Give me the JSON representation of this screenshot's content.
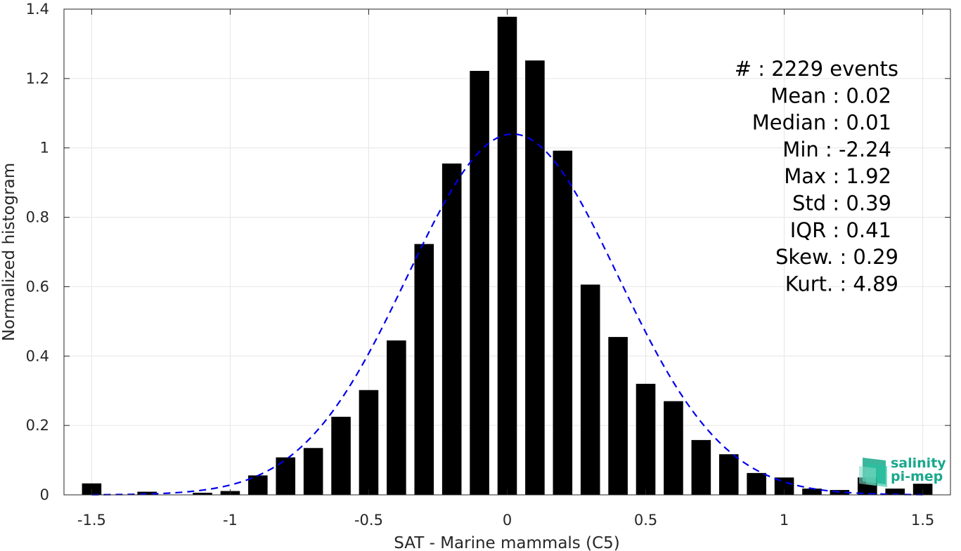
{
  "chart_data": {
    "type": "bar",
    "xlabel": "SAT - Marine mammals (C5)",
    "ylabel": "Normalized histogram",
    "xlim": [
      -1.6,
      1.6
    ],
    "ylim": [
      0,
      1.4
    ],
    "grid": true,
    "xticks": [
      -1.5,
      -1,
      -0.5,
      0,
      0.5,
      1,
      1.5
    ],
    "xtick_labels": [
      "-1.5",
      "-1",
      "-0.5",
      "0",
      "0.5",
      "1",
      "1.5"
    ],
    "yticks": [
      0,
      0.2,
      0.4,
      0.6,
      0.8,
      1,
      1.2,
      1.4
    ],
    "ytick_labels": [
      "0",
      "0.2",
      "0.4",
      "0.6",
      "0.8",
      "1",
      "1.2",
      "1.4"
    ],
    "bar_width": 0.07,
    "bins": [
      {
        "x": -1.5,
        "y": 0.033
      },
      {
        "x": -1.3,
        "y": 0.009
      },
      {
        "x": -1.1,
        "y": 0.006
      },
      {
        "x": -1.0,
        "y": 0.011
      },
      {
        "x": -0.9,
        "y": 0.056
      },
      {
        "x": -0.8,
        "y": 0.108
      },
      {
        "x": -0.7,
        "y": 0.135
      },
      {
        "x": -0.6,
        "y": 0.225
      },
      {
        "x": -0.5,
        "y": 0.302
      },
      {
        "x": -0.4,
        "y": 0.445
      },
      {
        "x": -0.3,
        "y": 0.723
      },
      {
        "x": -0.2,
        "y": 0.955
      },
      {
        "x": -0.1,
        "y": 1.222
      },
      {
        "x": 0.0,
        "y": 1.378
      },
      {
        "x": 0.1,
        "y": 1.252
      },
      {
        "x": 0.2,
        "y": 0.992
      },
      {
        "x": 0.3,
        "y": 0.606
      },
      {
        "x": 0.4,
        "y": 0.455
      },
      {
        "x": 0.5,
        "y": 0.32
      },
      {
        "x": 0.6,
        "y": 0.27
      },
      {
        "x": 0.7,
        "y": 0.158
      },
      {
        "x": 0.8,
        "y": 0.117
      },
      {
        "x": 0.9,
        "y": 0.063
      },
      {
        "x": 1.0,
        "y": 0.05
      },
      {
        "x": 1.1,
        "y": 0.018
      },
      {
        "x": 1.2,
        "y": 0.014
      },
      {
        "x": 1.3,
        "y": 0.05
      },
      {
        "x": 1.4,
        "y": 0.018
      },
      {
        "x": 1.5,
        "y": 0.032
      }
    ],
    "fit_curve": {
      "style": "dashed",
      "color": "#0000ee",
      "mean": 0.02,
      "std": 0.38,
      "peak": 1.04,
      "x_range": [
        -1.5,
        1.5
      ]
    },
    "stats": [
      "#  : 2229 events",
      "Mean : 0.02",
      "Median : 0.01",
      "Min : -2.24",
      "Max : 1.92",
      "Std : 0.39",
      "IQR : 0.41",
      "Skew. : 0.29",
      "Kurt. : 4.89"
    ]
  },
  "logo": {
    "line1": "salinity",
    "line2": "pi-mep",
    "icon": "salinity-pimep-logo-icon",
    "color": "#1aa88c"
  }
}
